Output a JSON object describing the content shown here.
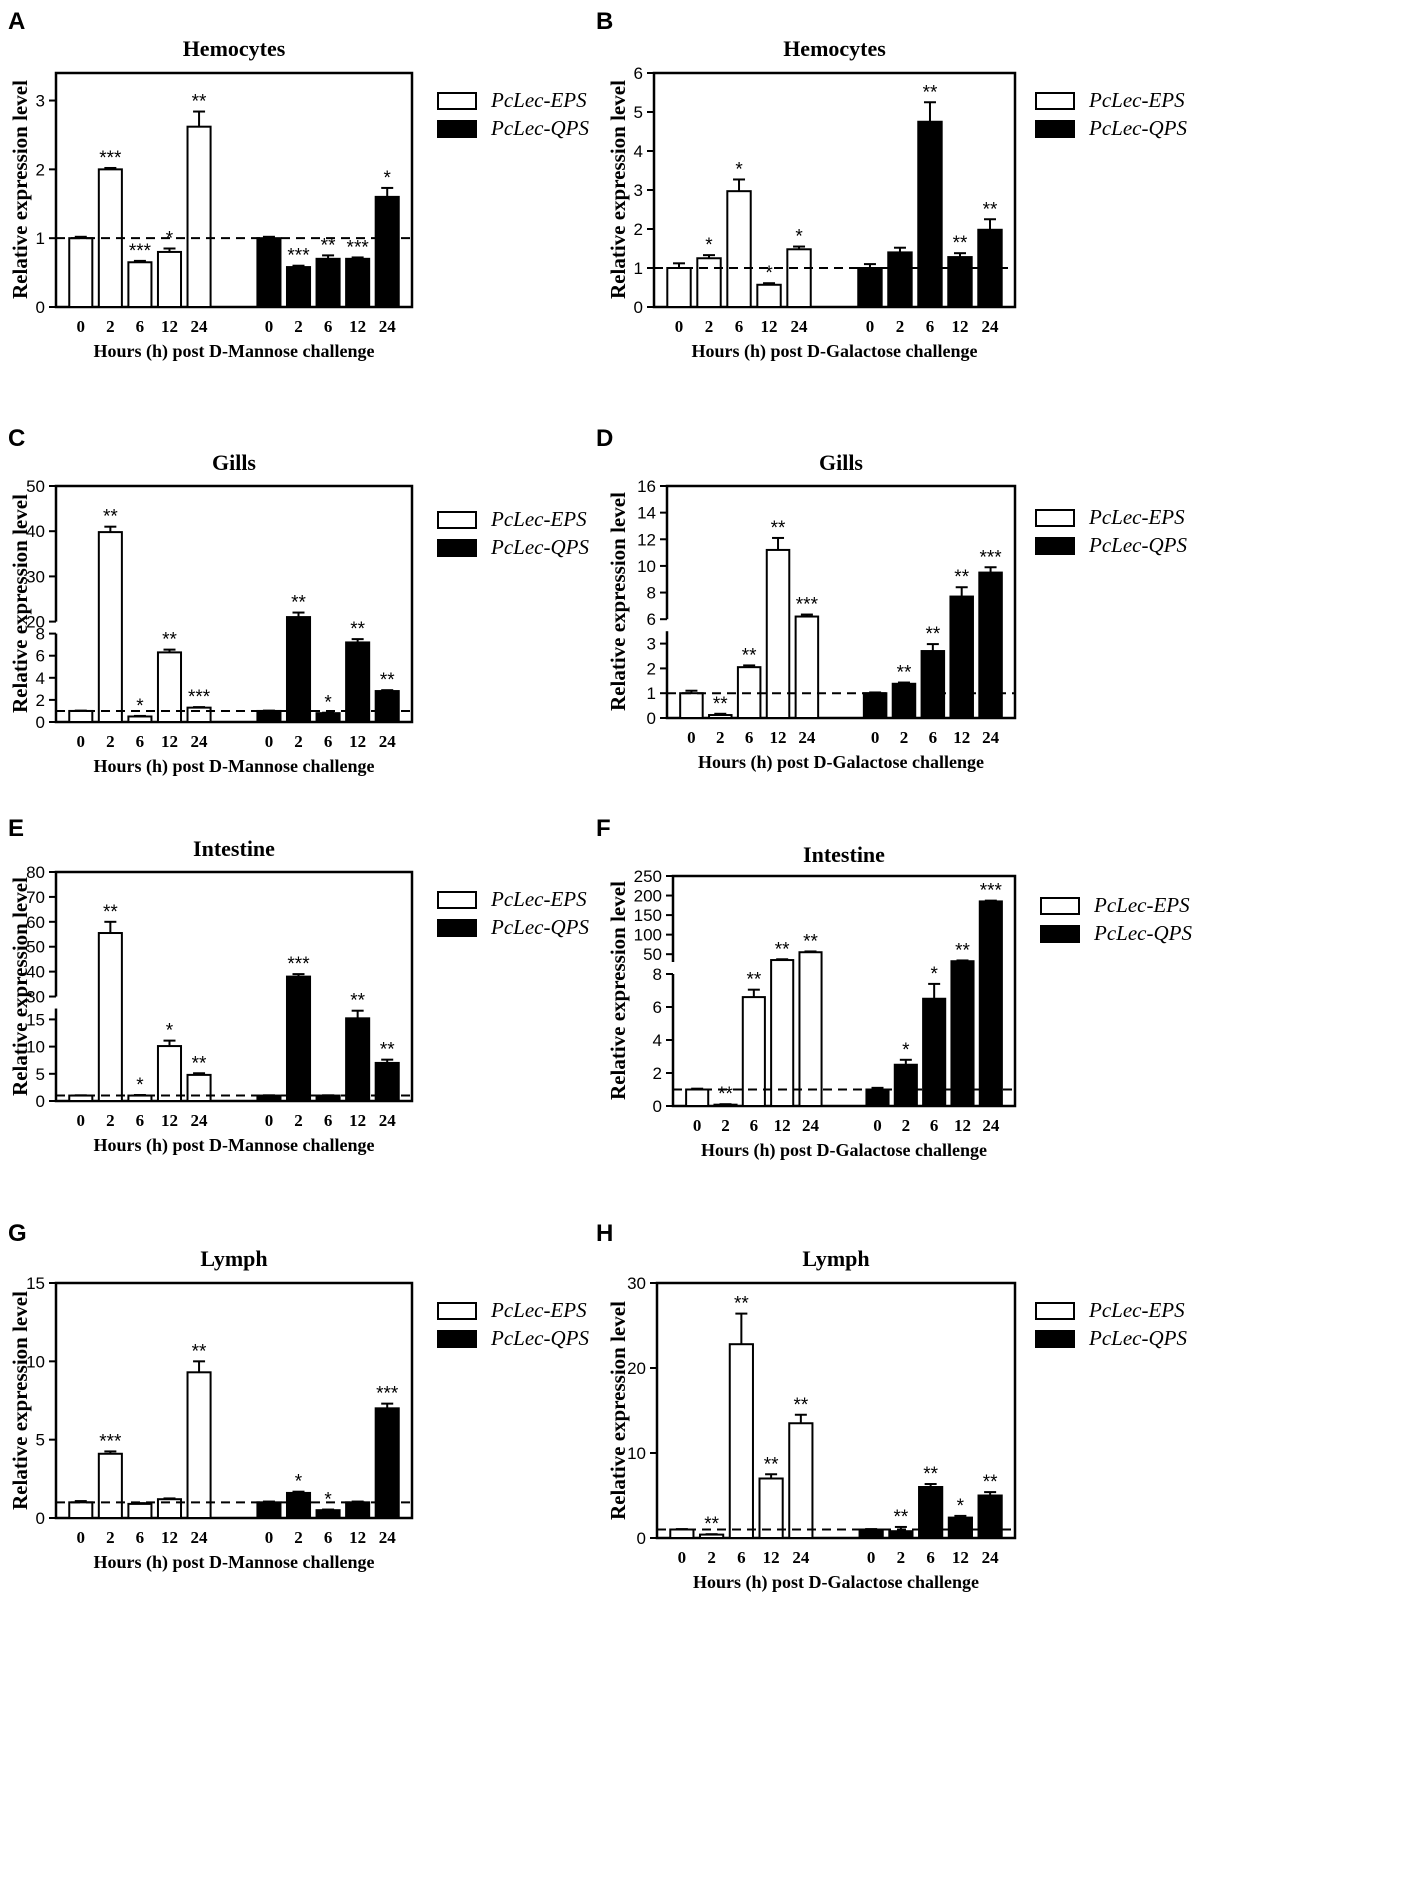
{
  "colors": {
    "eps": "#ffffff",
    "qps": "#000000",
    "axis": "#000000"
  },
  "legend": {
    "eps": "PcLec-EPS",
    "qps": "PcLec-QPS"
  },
  "chart_data": [
    {
      "panel": "A",
      "type": "bar",
      "title": "Hemocytes",
      "ylabel": "Relative expression level",
      "xlabel": "Hours (h) post D-Mannose challenge",
      "categories": [
        "0",
        "2",
        "6",
        "12",
        "24"
      ],
      "series": [
        {
          "name": "PcLec-EPS",
          "values": [
            1.0,
            2.0,
            0.65,
            0.8,
            2.62
          ],
          "errors": [
            0.02,
            0.02,
            0.02,
            0.05,
            0.22
          ],
          "sig": [
            "",
            "***",
            "***",
            "*",
            "**"
          ]
        },
        {
          "name": "PcLec-QPS",
          "values": [
            1.0,
            0.58,
            0.7,
            0.7,
            1.6
          ],
          "errors": [
            0.02,
            0.02,
            0.05,
            0.02,
            0.13
          ],
          "sig": [
            "",
            "***",
            "**",
            "***",
            "*"
          ]
        }
      ],
      "axis": {
        "segments": [
          {
            "min": 0,
            "max": 3.4,
            "ticks": [
              0,
              1,
              2,
              3
            ]
          }
        ]
      },
      "ylim": [
        0,
        3.4
      ],
      "refline": 1
    },
    {
      "panel": "B",
      "type": "bar",
      "title": "Hemocytes",
      "ylabel": "Relative expression level",
      "xlabel": "Hours (h) post D-Galactose challenge",
      "categories": [
        "0",
        "2",
        "6",
        "12",
        "24"
      ],
      "series": [
        {
          "name": "PcLec-EPS",
          "values": [
            1.0,
            1.25,
            2.97,
            0.57,
            1.48
          ],
          "errors": [
            0.12,
            0.08,
            0.3,
            0.04,
            0.07
          ],
          "sig": [
            "",
            "*",
            "*",
            "*",
            "*"
          ]
        },
        {
          "name": "PcLec-QPS",
          "values": [
            1.0,
            1.4,
            4.75,
            1.28,
            1.98
          ],
          "errors": [
            0.1,
            0.12,
            0.5,
            0.1,
            0.27
          ],
          "sig": [
            "",
            "",
            "**",
            "**",
            "**"
          ]
        }
      ],
      "axis": {
        "segments": [
          {
            "min": 0,
            "max": 6,
            "ticks": [
              0,
              1,
              2,
              3,
              4,
              5,
              6
            ]
          }
        ]
      },
      "ylim": [
        0,
        6
      ],
      "refline": 1
    },
    {
      "panel": "C",
      "type": "bar",
      "title": "Gills",
      "ylabel": "Relative expression level",
      "xlabel": "Hours (h) post D-Mannose challenge",
      "categories": [
        "0",
        "2",
        "6",
        "12",
        "24"
      ],
      "series": [
        {
          "name": "PcLec-EPS",
          "values": [
            1.0,
            39.8,
            0.5,
            6.3,
            1.3
          ],
          "errors": [
            0.03,
            1.2,
            0.05,
            0.25,
            0.05
          ],
          "sig": [
            "",
            "**",
            "*",
            "**",
            "***"
          ]
        },
        {
          "name": "PcLec-QPS",
          "values": [
            1.0,
            21.0,
            0.8,
            7.2,
            2.8
          ],
          "errors": [
            0.03,
            1.0,
            0.04,
            0.3,
            0.08
          ],
          "sig": [
            "",
            "**",
            "*",
            "**",
            "**"
          ]
        }
      ],
      "axis": {
        "segments": [
          {
            "min": 0,
            "max": 8,
            "ticks": [
              0,
              2,
              4,
              6,
              8
            ]
          },
          {
            "min": 20,
            "max": 50,
            "ticks": [
              20,
              30,
              40,
              50
            ]
          }
        ]
      },
      "ylim": [
        0,
        50
      ],
      "refline": 1
    },
    {
      "panel": "D",
      "type": "bar",
      "title": "Gills",
      "ylabel": "Relative expression level",
      "xlabel": "Hours (h) post D-Galactose challenge",
      "categories": [
        "0",
        "2",
        "6",
        "12",
        "24"
      ],
      "series": [
        {
          "name": "PcLec-EPS",
          "values": [
            1.0,
            0.12,
            2.05,
            11.2,
            6.2
          ],
          "errors": [
            0.1,
            0.05,
            0.07,
            0.9,
            0.15
          ],
          "sig": [
            "",
            "**",
            "**",
            "**",
            "***"
          ]
        },
        {
          "name": "PcLec-QPS",
          "values": [
            1.0,
            1.38,
            2.7,
            7.7,
            9.5
          ],
          "errors": [
            0.03,
            0.05,
            0.28,
            0.7,
            0.4
          ],
          "sig": [
            "",
            "**",
            "**",
            "**",
            "***"
          ]
        }
      ],
      "axis": {
        "segments": [
          {
            "min": 0,
            "max": 3.5,
            "ticks": [
              0,
              1,
              2,
              3
            ]
          },
          {
            "min": 6,
            "max": 16,
            "ticks": [
              6,
              8,
              10,
              12,
              14,
              16
            ]
          }
        ]
      },
      "ylim": [
        0,
        16
      ],
      "refline": 1
    },
    {
      "panel": "E",
      "type": "bar",
      "title": "Intestine",
      "ylabel": "Relative expression level",
      "xlabel": "Hours (h) post D-Mannose challenge",
      "categories": [
        "0",
        "2",
        "6",
        "12",
        "24"
      ],
      "series": [
        {
          "name": "PcLec-EPS",
          "values": [
            1.0,
            55.5,
            1.0,
            10.1,
            4.8
          ],
          "errors": [
            0.05,
            4.5,
            0.1,
            1.0,
            0.3
          ],
          "sig": [
            "",
            "**",
            "*",
            "*",
            "**"
          ]
        },
        {
          "name": "PcLec-QPS",
          "values": [
            1.0,
            38.0,
            1.0,
            15.2,
            7.0
          ],
          "errors": [
            0.05,
            1.0,
            0.05,
            1.4,
            0.6
          ],
          "sig": [
            "",
            "***",
            "",
            "**",
            "**"
          ]
        }
      ],
      "axis": {
        "segments": [
          {
            "min": 0,
            "max": 17,
            "ticks": [
              0,
              5,
              10,
              15
            ]
          },
          {
            "min": 30,
            "max": 80,
            "ticks": [
              30,
              40,
              50,
              60,
              70,
              80
            ]
          }
        ]
      },
      "ylim": [
        0,
        80
      ],
      "refline": 1
    },
    {
      "panel": "F",
      "type": "bar",
      "title": "Intestine",
      "ylabel": "Relative expression level",
      "xlabel": "Hours (h) post D-Galactose challenge",
      "categories": [
        "0",
        "2",
        "6",
        "12",
        "24"
      ],
      "series": [
        {
          "name": "PcLec-EPS",
          "values": [
            1.0,
            0.08,
            6.6,
            35.0,
            55.0
          ],
          "errors": [
            0.05,
            0.03,
            0.45,
            2.0,
            2.0
          ],
          "sig": [
            "",
            "**",
            "**",
            "**",
            "**"
          ]
        },
        {
          "name": "PcLec-QPS",
          "values": [
            1.0,
            2.5,
            6.5,
            32.0,
            185.0
          ],
          "errors": [
            0.1,
            0.3,
            0.9,
            2.0,
            2.0
          ],
          "sig": [
            "",
            "*",
            "*",
            "**",
            "***"
          ]
        }
      ],
      "axis": {
        "segments": [
          {
            "min": 0,
            "max": 8,
            "ticks": [
              0,
              2,
              4,
              6,
              8
            ]
          },
          {
            "min": 30,
            "max": 250,
            "ticks": [
              50,
              100,
              150,
              200,
              250
            ]
          }
        ]
      },
      "ylim": [
        0,
        250
      ],
      "refline": 1
    },
    {
      "panel": "G",
      "type": "bar",
      "title": "Lymph",
      "ylabel": "Relative expression level",
      "xlabel": "Hours (h) post D-Mannose challenge",
      "categories": [
        "0",
        "2",
        "6",
        "12",
        "24"
      ],
      "series": [
        {
          "name": "PcLec-EPS",
          "values": [
            1.0,
            4.1,
            0.9,
            1.2,
            9.3
          ],
          "errors": [
            0.08,
            0.15,
            0.05,
            0.05,
            0.7
          ],
          "sig": [
            "",
            "***",
            "",
            "",
            "**"
          ]
        },
        {
          "name": "PcLec-QPS",
          "values": [
            1.0,
            1.6,
            0.5,
            1.0,
            7.0
          ],
          "errors": [
            0.05,
            0.08,
            0.04,
            0.05,
            0.3
          ],
          "sig": [
            "",
            "*",
            "*",
            "",
            "***"
          ]
        }
      ],
      "axis": {
        "segments": [
          {
            "min": 0,
            "max": 15,
            "ticks": [
              0,
              5,
              10,
              15
            ]
          }
        ]
      },
      "ylim": [
        0,
        15
      ],
      "refline": 1
    },
    {
      "panel": "H",
      "type": "bar",
      "title": "Lymph",
      "ylabel": "Relative expression level",
      "xlabel": "Hours (h) post D-Galactose challenge",
      "categories": [
        "0",
        "2",
        "6",
        "12",
        "24"
      ],
      "series": [
        {
          "name": "PcLec-EPS",
          "values": [
            1.0,
            0.4,
            22.8,
            7.0,
            13.5
          ],
          "errors": [
            0.05,
            0.05,
            3.6,
            0.5,
            1.0
          ],
          "sig": [
            "",
            "**",
            "**",
            "**",
            "**"
          ]
        },
        {
          "name": "PcLec-QPS",
          "values": [
            1.0,
            0.8,
            6.0,
            2.4,
            5.0
          ],
          "errors": [
            0.05,
            0.5,
            0.35,
            0.2,
            0.4
          ],
          "sig": [
            "",
            "**",
            "**",
            "*",
            "**"
          ]
        }
      ],
      "axis": {
        "segments": [
          {
            "min": 0,
            "max": 30,
            "ticks": [
              0,
              10,
              20,
              30
            ]
          }
        ]
      },
      "ylim": [
        0,
        30
      ],
      "refline": 1
    }
  ]
}
